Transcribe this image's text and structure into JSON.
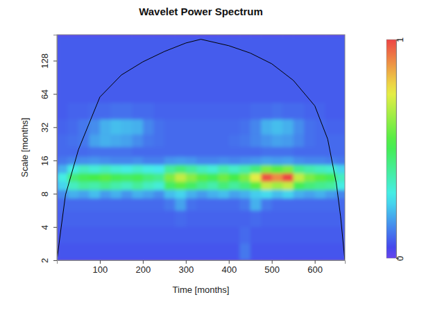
{
  "chart_data": {
    "type": "heatmap",
    "title": "Wavelet Power Spectrum",
    "x_label": "Time [months]",
    "y_label": "Scale [months]",
    "log": "y",
    "xlim": [
      0,
      670
    ],
    "ylim": [
      2,
      220
    ],
    "xticks": [
      100,
      200,
      300,
      400,
      500,
      600
    ],
    "yticks": [
      2,
      4,
      8,
      16,
      32,
      64,
      128
    ],
    "x": [
      12.5,
      37.5,
      62.5,
      87.5,
      112.5,
      137.5,
      162.5,
      187.5,
      212.5,
      237.5,
      262.5,
      287.5,
      312.5,
      337.5,
      362.5,
      387.5,
      412.5,
      437.5,
      462.5,
      487.5,
      512.5,
      537.5,
      562.5,
      587.5,
      612.5,
      637.5,
      662.5
    ],
    "y": [
      2.4,
      3.4,
      4.8,
      6.7,
      8.0,
      9.5,
      11.3,
      13.5,
      16,
      19,
      24,
      32,
      45,
      64,
      90,
      128,
      181
    ],
    "z": [
      [
        0.07,
        0.07,
        0.07,
        0.07,
        0.07,
        0.07,
        0.07,
        0.07,
        0.07,
        0.07,
        0.07,
        0.07,
        0.07,
        0.07,
        0.07,
        0.07,
        0.07,
        0.12,
        0.07,
        0.07,
        0.07,
        0.07,
        0.07,
        0.07,
        0.07,
        0.07,
        0.07
      ],
      [
        0.08,
        0.08,
        0.08,
        0.08,
        0.08,
        0.08,
        0.08,
        0.08,
        0.08,
        0.08,
        0.08,
        0.08,
        0.08,
        0.08,
        0.08,
        0.08,
        0.08,
        0.1,
        0.08,
        0.08,
        0.08,
        0.08,
        0.08,
        0.08,
        0.08,
        0.08,
        0.08
      ],
      [
        0.09,
        0.09,
        0.09,
        0.09,
        0.09,
        0.09,
        0.09,
        0.09,
        0.09,
        0.09,
        0.09,
        0.1,
        0.09,
        0.09,
        0.09,
        0.09,
        0.09,
        0.09,
        0.1,
        0.09,
        0.09,
        0.09,
        0.09,
        0.09,
        0.09,
        0.09,
        0.09
      ],
      [
        0.1,
        0.1,
        0.1,
        0.1,
        0.1,
        0.1,
        0.1,
        0.1,
        0.1,
        0.1,
        0.12,
        0.18,
        0.11,
        0.1,
        0.1,
        0.1,
        0.1,
        0.12,
        0.2,
        0.12,
        0.1,
        0.1,
        0.1,
        0.1,
        0.1,
        0.1,
        0.1
      ],
      [
        0.15,
        0.2,
        0.18,
        0.22,
        0.17,
        0.2,
        0.16,
        0.2,
        0.18,
        0.15,
        0.22,
        0.25,
        0.2,
        0.17,
        0.2,
        0.22,
        0.18,
        0.2,
        0.24,
        0.26,
        0.22,
        0.25,
        0.2,
        0.18,
        0.2,
        0.17,
        0.14
      ],
      [
        0.25,
        0.35,
        0.4,
        0.38,
        0.42,
        0.38,
        0.35,
        0.4,
        0.35,
        0.32,
        0.48,
        0.55,
        0.48,
        0.42,
        0.38,
        0.45,
        0.4,
        0.45,
        0.55,
        0.7,
        0.65,
        0.7,
        0.5,
        0.45,
        0.42,
        0.4,
        0.3
      ],
      [
        0.3,
        0.45,
        0.5,
        0.52,
        0.55,
        0.5,
        0.48,
        0.5,
        0.45,
        0.42,
        0.6,
        0.7,
        0.62,
        0.55,
        0.5,
        0.58,
        0.52,
        0.6,
        0.75,
        0.98,
        0.9,
        1.0,
        0.7,
        0.6,
        0.55,
        0.5,
        0.35
      ],
      [
        0.2,
        0.3,
        0.35,
        0.32,
        0.35,
        0.32,
        0.3,
        0.33,
        0.3,
        0.28,
        0.4,
        0.45,
        0.4,
        0.35,
        0.32,
        0.38,
        0.34,
        0.38,
        0.45,
        0.6,
        0.55,
        0.6,
        0.42,
        0.38,
        0.35,
        0.33,
        0.25
      ],
      [
        0.12,
        0.14,
        0.15,
        0.16,
        0.15,
        0.14,
        0.14,
        0.15,
        0.13,
        0.13,
        0.16,
        0.17,
        0.16,
        0.14,
        0.14,
        0.15,
        0.14,
        0.15,
        0.16,
        0.18,
        0.17,
        0.18,
        0.15,
        0.14,
        0.14,
        0.13,
        0.12
      ],
      [
        0.1,
        0.1,
        0.1,
        0.11,
        0.11,
        0.11,
        0.11,
        0.1,
        0.1,
        0.1,
        0.1,
        0.1,
        0.1,
        0.1,
        0.1,
        0.1,
        0.1,
        0.1,
        0.1,
        0.11,
        0.11,
        0.11,
        0.1,
        0.1,
        0.1,
        0.1,
        0.1
      ],
      [
        0.1,
        0.11,
        0.12,
        0.18,
        0.2,
        0.19,
        0.18,
        0.15,
        0.12,
        0.11,
        0.1,
        0.1,
        0.1,
        0.1,
        0.1,
        0.1,
        0.11,
        0.12,
        0.14,
        0.16,
        0.18,
        0.17,
        0.14,
        0.11,
        0.1,
        0.1,
        0.1
      ],
      [
        0.09,
        0.1,
        0.12,
        0.15,
        0.2,
        0.22,
        0.21,
        0.2,
        0.14,
        0.11,
        0.1,
        0.1,
        0.1,
        0.1,
        0.1,
        0.1,
        0.1,
        0.11,
        0.14,
        0.2,
        0.22,
        0.2,
        0.15,
        0.11,
        0.1,
        0.09,
        0.09
      ],
      [
        0.08,
        0.09,
        0.09,
        0.1,
        0.1,
        0.11,
        0.11,
        0.1,
        0.1,
        0.09,
        0.09,
        0.09,
        0.09,
        0.09,
        0.09,
        0.09,
        0.09,
        0.09,
        0.1,
        0.1,
        0.11,
        0.1,
        0.1,
        0.09,
        0.09,
        0.08,
        0.08
      ],
      [
        0.08,
        0.08,
        0.08,
        0.08,
        0.08,
        0.08,
        0.08,
        0.08,
        0.08,
        0.08,
        0.08,
        0.08,
        0.08,
        0.08,
        0.08,
        0.08,
        0.08,
        0.08,
        0.08,
        0.08,
        0.08,
        0.08,
        0.08,
        0.08,
        0.08,
        0.08,
        0.08
      ],
      [
        0.08,
        0.08,
        0.08,
        0.08,
        0.08,
        0.08,
        0.08,
        0.08,
        0.08,
        0.08,
        0.08,
        0.08,
        0.08,
        0.08,
        0.08,
        0.08,
        0.08,
        0.08,
        0.08,
        0.08,
        0.08,
        0.08,
        0.08,
        0.08,
        0.08,
        0.08,
        0.08
      ],
      [
        0.08,
        0.08,
        0.08,
        0.08,
        0.08,
        0.08,
        0.08,
        0.08,
        0.08,
        0.08,
        0.08,
        0.08,
        0.08,
        0.08,
        0.08,
        0.08,
        0.08,
        0.08,
        0.08,
        0.08,
        0.08,
        0.08,
        0.08,
        0.08,
        0.08,
        0.08,
        0.08
      ],
      [
        0.08,
        0.08,
        0.08,
        0.08,
        0.08,
        0.08,
        0.08,
        0.08,
        0.08,
        0.08,
        0.08,
        0.08,
        0.08,
        0.08,
        0.08,
        0.08,
        0.08,
        0.08,
        0.08,
        0.08,
        0.08,
        0.08,
        0.08,
        0.08,
        0.08,
        0.08,
        0.08
      ]
    ],
    "cone_of_influence": {
      "x": [
        0,
        10,
        20,
        50,
        100,
        150,
        200,
        250,
        300,
        335,
        400,
        450,
        500,
        550,
        600,
        630,
        650,
        660,
        670
      ],
      "y": [
        2,
        4,
        7.8,
        20,
        60,
        95,
        125,
        155,
        185,
        200,
        175,
        150,
        120,
        85,
        50,
        25,
        10,
        5,
        2
      ]
    },
    "colorbar_range": [
      0,
      1
    ],
    "colorbar_ticks": [
      0,
      1
    ]
  }
}
